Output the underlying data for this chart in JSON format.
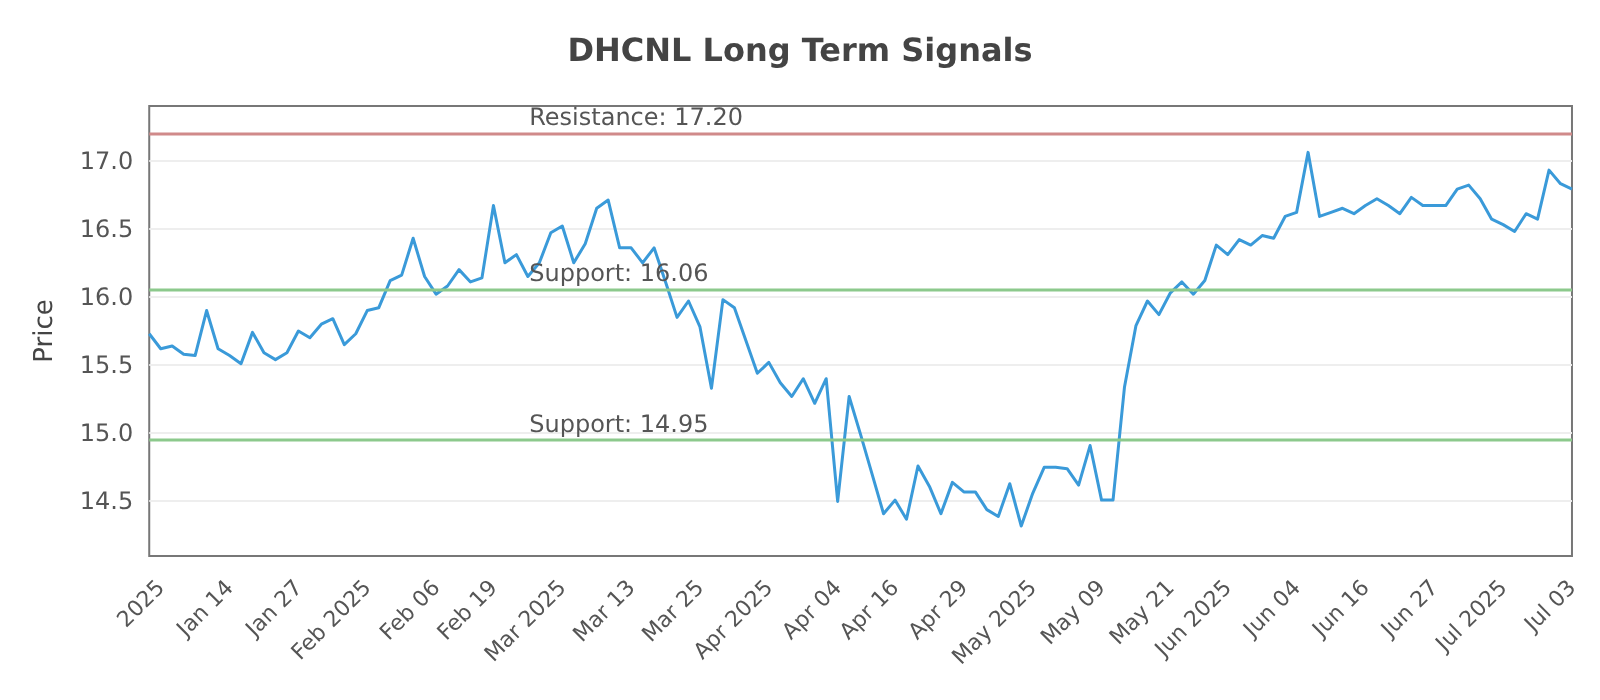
{
  "chart_data": {
    "type": "line",
    "title": "DHCNL Long Term Signals",
    "ylabel": "Price",
    "categories": [
      null,
      "2025",
      null,
      null,
      null,
      null,
      null,
      "Jan 14",
      null,
      null,
      null,
      null,
      null,
      "Jan 27",
      null,
      null,
      null,
      null,
      null,
      "Feb 2025",
      null,
      null,
      null,
      null,
      null,
      "Feb 06",
      null,
      null,
      null,
      null,
      "Feb 19",
      null,
      null,
      null,
      null,
      null,
      "Mar 2025",
      null,
      null,
      null,
      null,
      null,
      "Mar 13",
      null,
      null,
      null,
      null,
      null,
      "Mar 25",
      null,
      null,
      null,
      null,
      null,
      "Apr 2025",
      null,
      null,
      null,
      null,
      null,
      "Apr 04",
      null,
      null,
      null,
      null,
      "Apr 16",
      null,
      null,
      null,
      null,
      null,
      "Apr 29",
      null,
      null,
      null,
      null,
      null,
      "May 2025",
      null,
      null,
      null,
      null,
      null,
      "May 09",
      null,
      null,
      null,
      null,
      null,
      "May 21",
      null,
      null,
      null,
      null,
      "Jun 2025",
      null,
      null,
      null,
      null,
      null,
      "Jun 04",
      null,
      null,
      null,
      null,
      null,
      "Jun 16",
      null,
      null,
      null,
      null,
      null,
      "Jun 27",
      null,
      null,
      null,
      null,
      null,
      "Jul 2025",
      null,
      null,
      null,
      null,
      null,
      "Jul 03"
    ],
    "series": [
      {
        "color": "#3a9ad9",
        "values": [
          15.73,
          15.62,
          15.64,
          15.58,
          15.57,
          15.9,
          15.62,
          15.57,
          15.51,
          15.74,
          15.59,
          15.54,
          15.59,
          15.75,
          15.7,
          15.8,
          15.84,
          15.65,
          15.73,
          15.9,
          15.92,
          16.12,
          16.16,
          16.43,
          16.15,
          16.02,
          16.08,
          16.2,
          16.11,
          16.14,
          16.67,
          16.25,
          16.31,
          16.15,
          16.25,
          16.47,
          16.52,
          16.25,
          16.39,
          16.65,
          16.71,
          16.36,
          16.36,
          16.25,
          16.36,
          16.11,
          15.85,
          15.97,
          15.78,
          15.33,
          15.98,
          15.92,
          15.68,
          15.44,
          15.52,
          15.37,
          15.27,
          15.4,
          15.22,
          15.4,
          14.5,
          15.27,
          14.99,
          14.7,
          14.41,
          14.51,
          14.37,
          14.76,
          14.61,
          14.41,
          14.64,
          14.57,
          14.57,
          14.44,
          14.39,
          14.63,
          14.32,
          14.56,
          14.75,
          14.75,
          14.74,
          14.62,
          14.91,
          14.51,
          14.51,
          15.34,
          15.79,
          15.97,
          15.87,
          16.03,
          16.11,
          16.02,
          16.12,
          16.38,
          16.31,
          16.42,
          16.38,
          16.45,
          16.43,
          16.59,
          16.62,
          17.06,
          16.59,
          16.62,
          16.65,
          16.61,
          16.67,
          16.72,
          16.67,
          16.61,
          16.73,
          16.67,
          16.67,
          16.67,
          16.79,
          16.82,
          16.72,
          16.57,
          16.53,
          16.48,
          16.61,
          16.57,
          16.93,
          16.83,
          16.79
        ]
      }
    ],
    "ylim": [
      14.1,
      17.4
    ],
    "yticks": [
      {
        "value": 14.5,
        "label": "14.5"
      },
      {
        "value": 15,
        "label": "15.0"
      },
      {
        "value": 15.5,
        "label": "15.5"
      },
      {
        "value": 16,
        "label": "16.0"
      },
      {
        "value": 16.5,
        "label": "16.5"
      },
      {
        "value": 17,
        "label": "17.0"
      }
    ],
    "ref_lines": [
      {
        "axis": "y",
        "value": 17.2,
        "label": "Resistance: 17.20",
        "color": "#d08a8a"
      },
      {
        "axis": "y",
        "value": 16.06,
        "label": "Support: 16.06",
        "color": "#8cc98c"
      },
      {
        "axis": "y",
        "value": 14.95,
        "label": "Support: 14.95",
        "color": "#8cc98c"
      }
    ],
    "grid": "y",
    "marker": "none",
    "line_style": "solid"
  }
}
